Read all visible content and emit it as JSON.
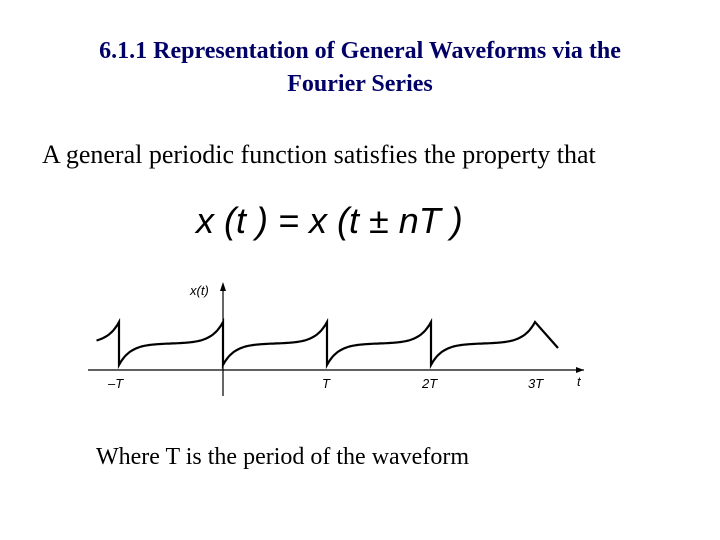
{
  "title": {
    "line1": "6.1.1 Representation of General Waveforms via the",
    "line2": "Fourier Series"
  },
  "body": "A general periodic function satisfies the property that",
  "equation": "x (t ) = x (t ± nT )",
  "figure": {
    "y_label": "x(t)",
    "x_label": "t",
    "ticks": [
      "–T",
      "T",
      "2T",
      "3T"
    ]
  },
  "caption": "Where T is the period of the waveform"
}
